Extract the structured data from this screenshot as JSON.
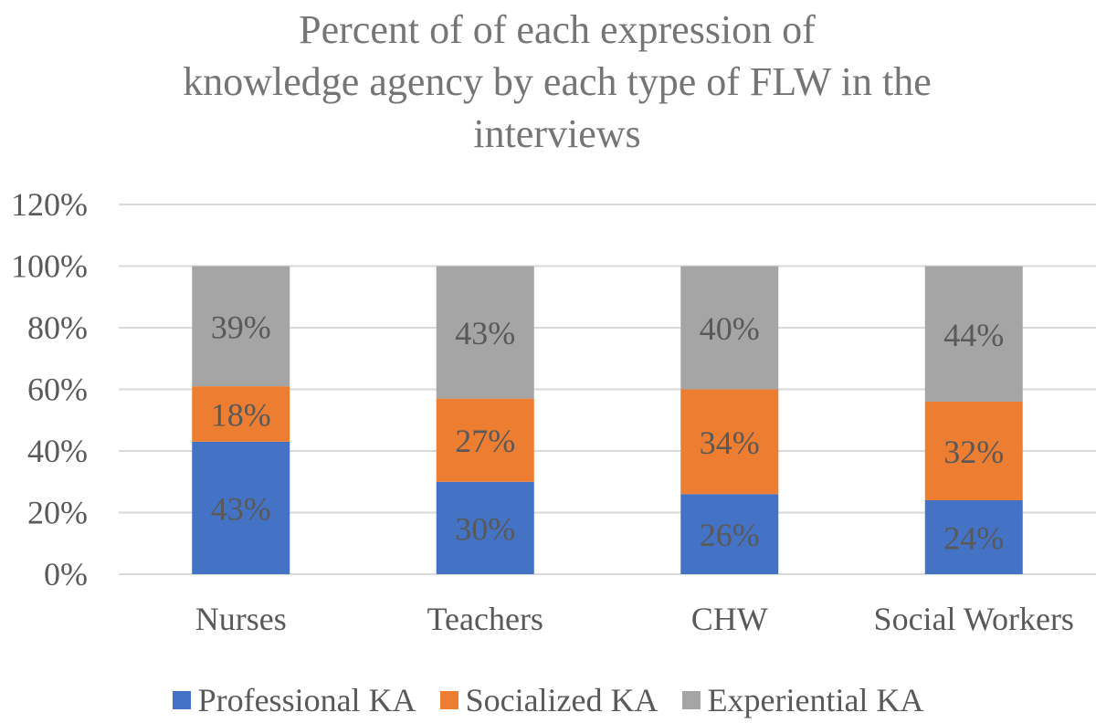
{
  "chart_data": {
    "type": "bar",
    "stacked": true,
    "title_lines": [
      "Percent of of each expression of",
      "knowledge agency by each type of FLW in the",
      "interviews"
    ],
    "categories": [
      "Nurses",
      "Teachers",
      "CHW",
      "Social Workers"
    ],
    "series": [
      {
        "name": "Professional KA",
        "values": [
          43,
          30,
          26,
          24
        ],
        "labels": [
          "43%",
          "30%",
          "26%",
          "24%"
        ],
        "color": "#4472C4"
      },
      {
        "name": "Socialized KA",
        "values": [
          18,
          27,
          34,
          32
        ],
        "labels": [
          "18%",
          "27%",
          "34%",
          "32%"
        ],
        "color": "#ED7D31"
      },
      {
        "name": "Experiential KA",
        "values": [
          39,
          43,
          40,
          44
        ],
        "labels": [
          "39%",
          "43%",
          "40%",
          "44%"
        ],
        "color": "#A5A5A5"
      }
    ],
    "yticks": [
      "0%",
      "20%",
      "40%",
      "60%",
      "80%",
      "100%",
      "120%"
    ],
    "ylim": [
      0,
      120
    ],
    "grid": true,
    "legend_position": "bottom"
  }
}
